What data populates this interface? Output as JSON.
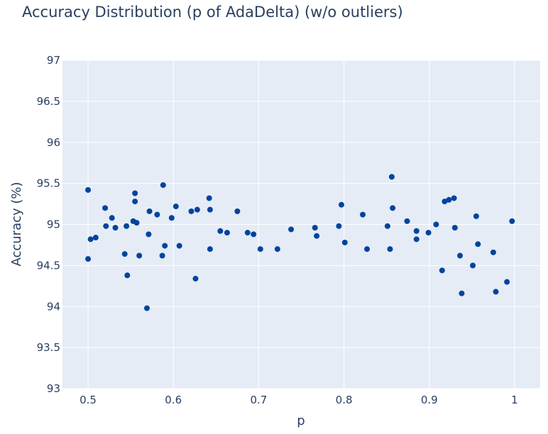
{
  "chart_data": {
    "type": "scatter",
    "title": "Accuracy Distribution (p of AdaDelta) (w/o outliers)",
    "xlabel": "p",
    "ylabel": "Accuracy (%)",
    "xlim": [
      0.47,
      1.03
    ],
    "ylim": [
      93,
      97
    ],
    "xticks": [
      0.5,
      0.6,
      0.7,
      0.8,
      0.9,
      1
    ],
    "xtick_labels": [
      "0.5",
      "0.6",
      "0.7",
      "0.8",
      "0.9",
      "1"
    ],
    "yticks": [
      93,
      93.5,
      94,
      94.5,
      95,
      95.5,
      96,
      96.5,
      97
    ],
    "ytick_labels": [
      "93",
      "93.5",
      "94",
      "94.5",
      "95",
      "95.5",
      "96",
      "96.5",
      "97"
    ],
    "grid": true,
    "background_color": "#e5ecf6",
    "grid_color": "#ffffff",
    "marker_color": "#00449e",
    "series": [
      {
        "x": [
          0.5,
          0.5,
          0.503,
          0.509,
          0.52,
          0.521,
          0.528,
          0.532,
          0.543,
          0.545,
          0.546,
          0.553,
          0.555,
          0.555,
          0.557,
          0.56,
          0.569,
          0.571,
          0.572,
          0.581,
          0.587,
          0.588,
          0.59,
          0.598,
          0.603,
          0.607,
          0.621,
          0.626,
          0.628,
          0.642,
          0.643,
          0.643,
          0.655,
          0.663,
          0.675,
          0.687,
          0.694,
          0.702,
          0.722,
          0.738,
          0.766,
          0.768,
          0.794,
          0.797,
          0.801,
          0.822,
          0.827,
          0.851,
          0.854,
          0.856,
          0.857,
          0.874,
          0.885,
          0.885,
          0.899,
          0.908,
          0.915,
          0.918,
          0.923,
          0.929,
          0.93,
          0.936,
          0.938,
          0.951,
          0.955,
          0.957,
          0.975,
          0.978,
          0.991,
          0.997
        ],
        "y": [
          95.42,
          94.58,
          94.82,
          94.84,
          95.2,
          94.98,
          95.08,
          94.96,
          94.64,
          94.98,
          94.38,
          95.04,
          95.38,
          95.28,
          95.02,
          94.62,
          93.98,
          94.88,
          95.16,
          95.12,
          94.62,
          95.48,
          94.74,
          95.08,
          95.22,
          94.74,
          95.16,
          94.34,
          95.18,
          95.32,
          95.18,
          94.7,
          94.92,
          94.9,
          95.16,
          94.9,
          94.88,
          94.7,
          94.7,
          94.94,
          94.96,
          94.86,
          94.98,
          95.24,
          94.78,
          95.12,
          94.7,
          94.98,
          94.7,
          95.58,
          95.2,
          95.04,
          94.92,
          94.82,
          94.9,
          95.0,
          94.44,
          95.28,
          95.3,
          95.32,
          94.96,
          94.62,
          94.16,
          94.5,
          95.1,
          94.76,
          94.66,
          94.18,
          94.3,
          95.04
        ]
      }
    ]
  }
}
